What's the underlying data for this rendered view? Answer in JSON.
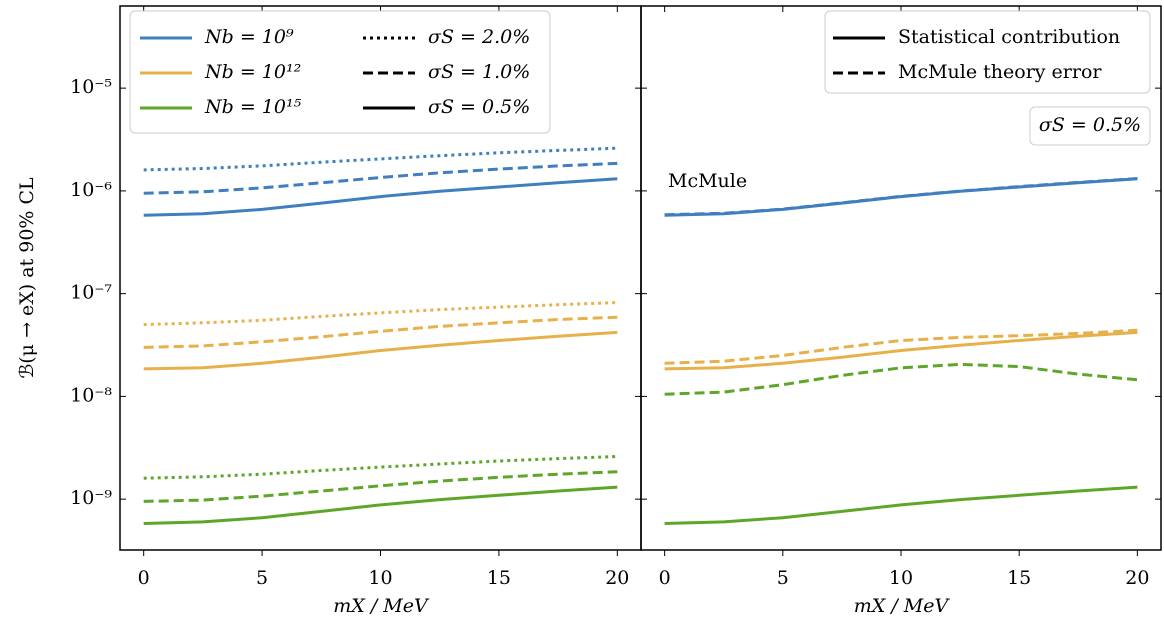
{
  "chart_data": [
    {
      "type": "line",
      "ylabel": "ℬ(μ → eX) at 90% CL",
      "xlabel": "mX / MeV",
      "log_y": true,
      "xlim": [
        -1,
        21
      ],
      "xticks": [
        0,
        5,
        10,
        15,
        20
      ],
      "ylim": [
        3.2e-10,
        6.3e-05
      ],
      "yticks": [
        {
          "value": 1e-09,
          "label": "10⁻⁹"
        },
        {
          "value": 1e-08,
          "label": "10⁻⁸"
        },
        {
          "value": 1e-07,
          "label": "10⁻⁷"
        },
        {
          "value": 1e-06,
          "label": "10⁻⁶"
        },
        {
          "value": 1e-05,
          "label": "10⁻⁵"
        }
      ],
      "legend": "upper left",
      "x": [
        0,
        2.5,
        5,
        7.5,
        10,
        12.5,
        15,
        17.5,
        20
      ],
      "series": [
        {
          "name": "Nb = 10⁹",
          "color": "#3f7fbf",
          "lines": [
            {
              "name": "σS = 2.0%",
              "dash": "dotted",
              "values": [
                1.6e-06,
                1.65e-06,
                1.75e-06,
                1.9e-06,
                2.05e-06,
                2.2e-06,
                2.35e-06,
                2.48e-06,
                2.6e-06
              ]
            },
            {
              "name": "σS = 1.0%",
              "dash": "dashed",
              "values": [
                9.5e-07,
                9.8e-07,
                1.07e-06,
                1.2e-06,
                1.35e-06,
                1.5e-06,
                1.63e-06,
                1.75e-06,
                1.85e-06
              ]
            },
            {
              "name": "σS = 0.5%",
              "dash": "solid",
              "values": [
                5.8e-07,
                6e-07,
                6.6e-07,
                7.6e-07,
                8.8e-07,
                9.9e-07,
                1.09e-06,
                1.2e-06,
                1.31e-06
              ]
            }
          ]
        },
        {
          "name": "Nb = 10¹²",
          "color": "#e8b04a",
          "lines": [
            {
              "name": "σS = 2.0%",
              "dash": "dotted",
              "values": [
                5e-08,
                5.2e-08,
                5.5e-08,
                6e-08,
                6.5e-08,
                7e-08,
                7.4e-08,
                7.8e-08,
                8.2e-08
              ]
            },
            {
              "name": "σS = 1.0%",
              "dash": "dashed",
              "values": [
                3e-08,
                3.1e-08,
                3.4e-08,
                3.8e-08,
                4.3e-08,
                4.8e-08,
                5.2e-08,
                5.6e-08,
                5.9e-08
              ]
            },
            {
              "name": "σS = 0.5%",
              "dash": "solid",
              "values": [
                1.85e-08,
                1.9e-08,
                2.1e-08,
                2.4e-08,
                2.8e-08,
                3.15e-08,
                3.5e-08,
                3.85e-08,
                4.2e-08
              ]
            }
          ]
        },
        {
          "name": "Nb = 10¹⁵",
          "color": "#5ea62a",
          "lines": [
            {
              "name": "σS = 2.0%",
              "dash": "dotted",
              "values": [
                1.6e-09,
                1.65e-09,
                1.75e-09,
                1.9e-09,
                2.05e-09,
                2.2e-09,
                2.35e-09,
                2.48e-09,
                2.6e-09
              ]
            },
            {
              "name": "σS = 1.0%",
              "dash": "dashed",
              "values": [
                9.5e-10,
                9.8e-10,
                1.07e-09,
                1.2e-09,
                1.35e-09,
                1.5e-09,
                1.63e-09,
                1.75e-09,
                1.85e-09
              ]
            },
            {
              "name": "σS = 0.5%",
              "dash": "solid",
              "values": [
                5.8e-10,
                6e-10,
                6.6e-10,
                7.6e-10,
                8.8e-10,
                9.9e-10,
                1.09e-09,
                1.2e-09,
                1.31e-09
              ]
            }
          ]
        }
      ]
    },
    {
      "type": "line",
      "xlabel": "mX / MeV",
      "log_y": true,
      "annotation": "σS = 0.5%",
      "logo": "McMule",
      "xlim": [
        -1,
        21
      ],
      "xticks": [
        0,
        5,
        10,
        15,
        20
      ],
      "ylim": [
        3.2e-10,
        6.3e-05
      ],
      "yticks": [
        1e-09,
        1e-08,
        1e-07,
        1e-06,
        1e-05
      ],
      "legend": "upper right",
      "x": [
        0,
        2.5,
        5,
        7.5,
        10,
        12.5,
        15,
        17.5,
        20
      ],
      "series": [
        {
          "color": "#3f7fbf",
          "lines": [
            {
              "name": "Statistical contribution",
              "dash": "solid",
              "values": [
                5.8e-07,
                6e-07,
                6.6e-07,
                7.6e-07,
                8.8e-07,
                9.9e-07,
                1.09e-06,
                1.2e-06,
                1.31e-06
              ]
            },
            {
              "name": "McMule theory error",
              "dash": "dashed",
              "values": [
                5.85e-07,
                6.05e-07,
                6.65e-07,
                7.65e-07,
                8.85e-07,
                9.95e-07,
                1.1e-06,
                1.21e-06,
                1.32e-06
              ]
            }
          ]
        },
        {
          "color": "#e8b04a",
          "lines": [
            {
              "name": "Statistical contribution",
              "dash": "solid",
              "values": [
                1.85e-08,
                1.9e-08,
                2.1e-08,
                2.4e-08,
                2.8e-08,
                3.15e-08,
                3.5e-08,
                3.85e-08,
                4.2e-08
              ]
            },
            {
              "name": "McMule theory error",
              "dash": "dashed",
              "values": [
                2.1e-08,
                2.2e-08,
                2.5e-08,
                3e-08,
                3.5e-08,
                3.75e-08,
                3.9e-08,
                4.1e-08,
                4.4e-08
              ]
            }
          ]
        },
        {
          "color": "#5ea62a",
          "lines": [
            {
              "name": "Statistical contribution",
              "dash": "solid",
              "values": [
                5.8e-10,
                6e-10,
                6.6e-10,
                7.6e-10,
                8.8e-10,
                9.9e-10,
                1.09e-09,
                1.2e-09,
                1.31e-09
              ]
            },
            {
              "name": "McMule theory error",
              "dash": "dashed",
              "values": [
                1.05e-08,
                1.1e-08,
                1.3e-08,
                1.6e-08,
                1.9e-08,
                2.05e-08,
                1.95e-08,
                1.65e-08,
                1.45e-08
              ]
            }
          ]
        }
      ]
    }
  ]
}
